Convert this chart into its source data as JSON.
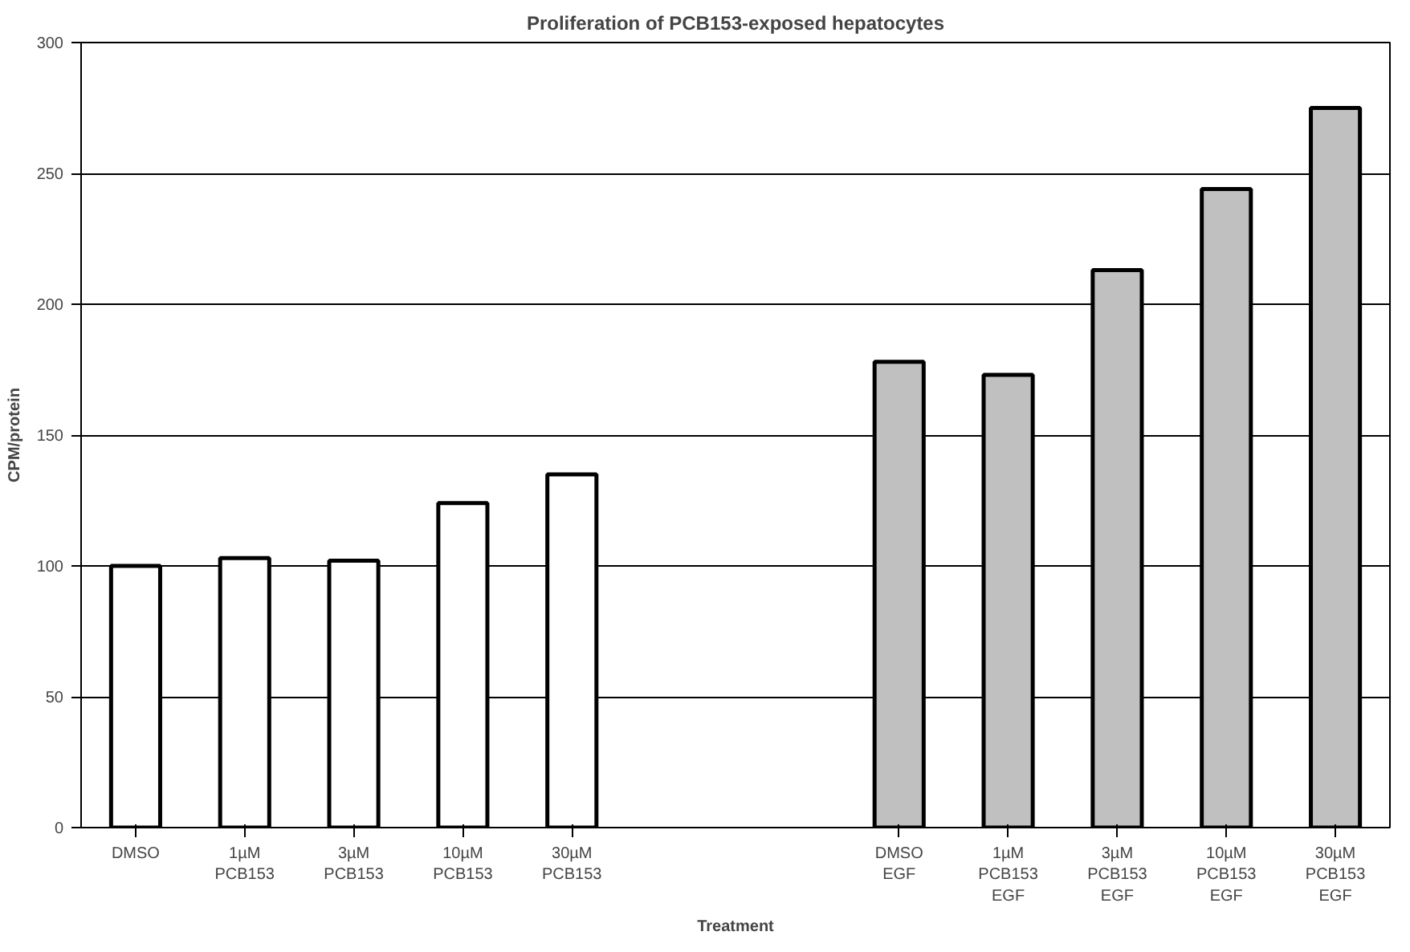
{
  "chart_data": {
    "type": "bar",
    "title": "Proliferation of PCB153-exposed hepatocytes",
    "xlabel": "Treatment",
    "ylabel": "CPM/protein",
    "categories": [
      "DMSO",
      "1µM\nPCB153",
      "3µM\nPCB153",
      "10µM\nPCB153",
      "30µM\nPCB153",
      null,
      null,
      "DMSO\nEGF",
      "1µM\nPCB153\nEGF",
      "3µM\nPCB153\nEGF",
      "10µM\nPCB153\nEGF",
      "30µM\nPCB153\nEGF"
    ],
    "values": [
      100,
      103,
      102,
      124,
      135,
      null,
      null,
      178,
      173,
      213,
      244,
      275
    ],
    "colors": [
      "#ffffff",
      "#ffffff",
      "#ffffff",
      "#ffffff",
      "#ffffff",
      null,
      null,
      "#c0c0c0",
      "#c0c0c0",
      "#c0c0c0",
      "#c0c0c0",
      "#c0c0c0"
    ],
    "ylim": [
      0,
      300
    ],
    "yticks": [
      0,
      50,
      100,
      150,
      200,
      250,
      300
    ],
    "grid": "y"
  }
}
